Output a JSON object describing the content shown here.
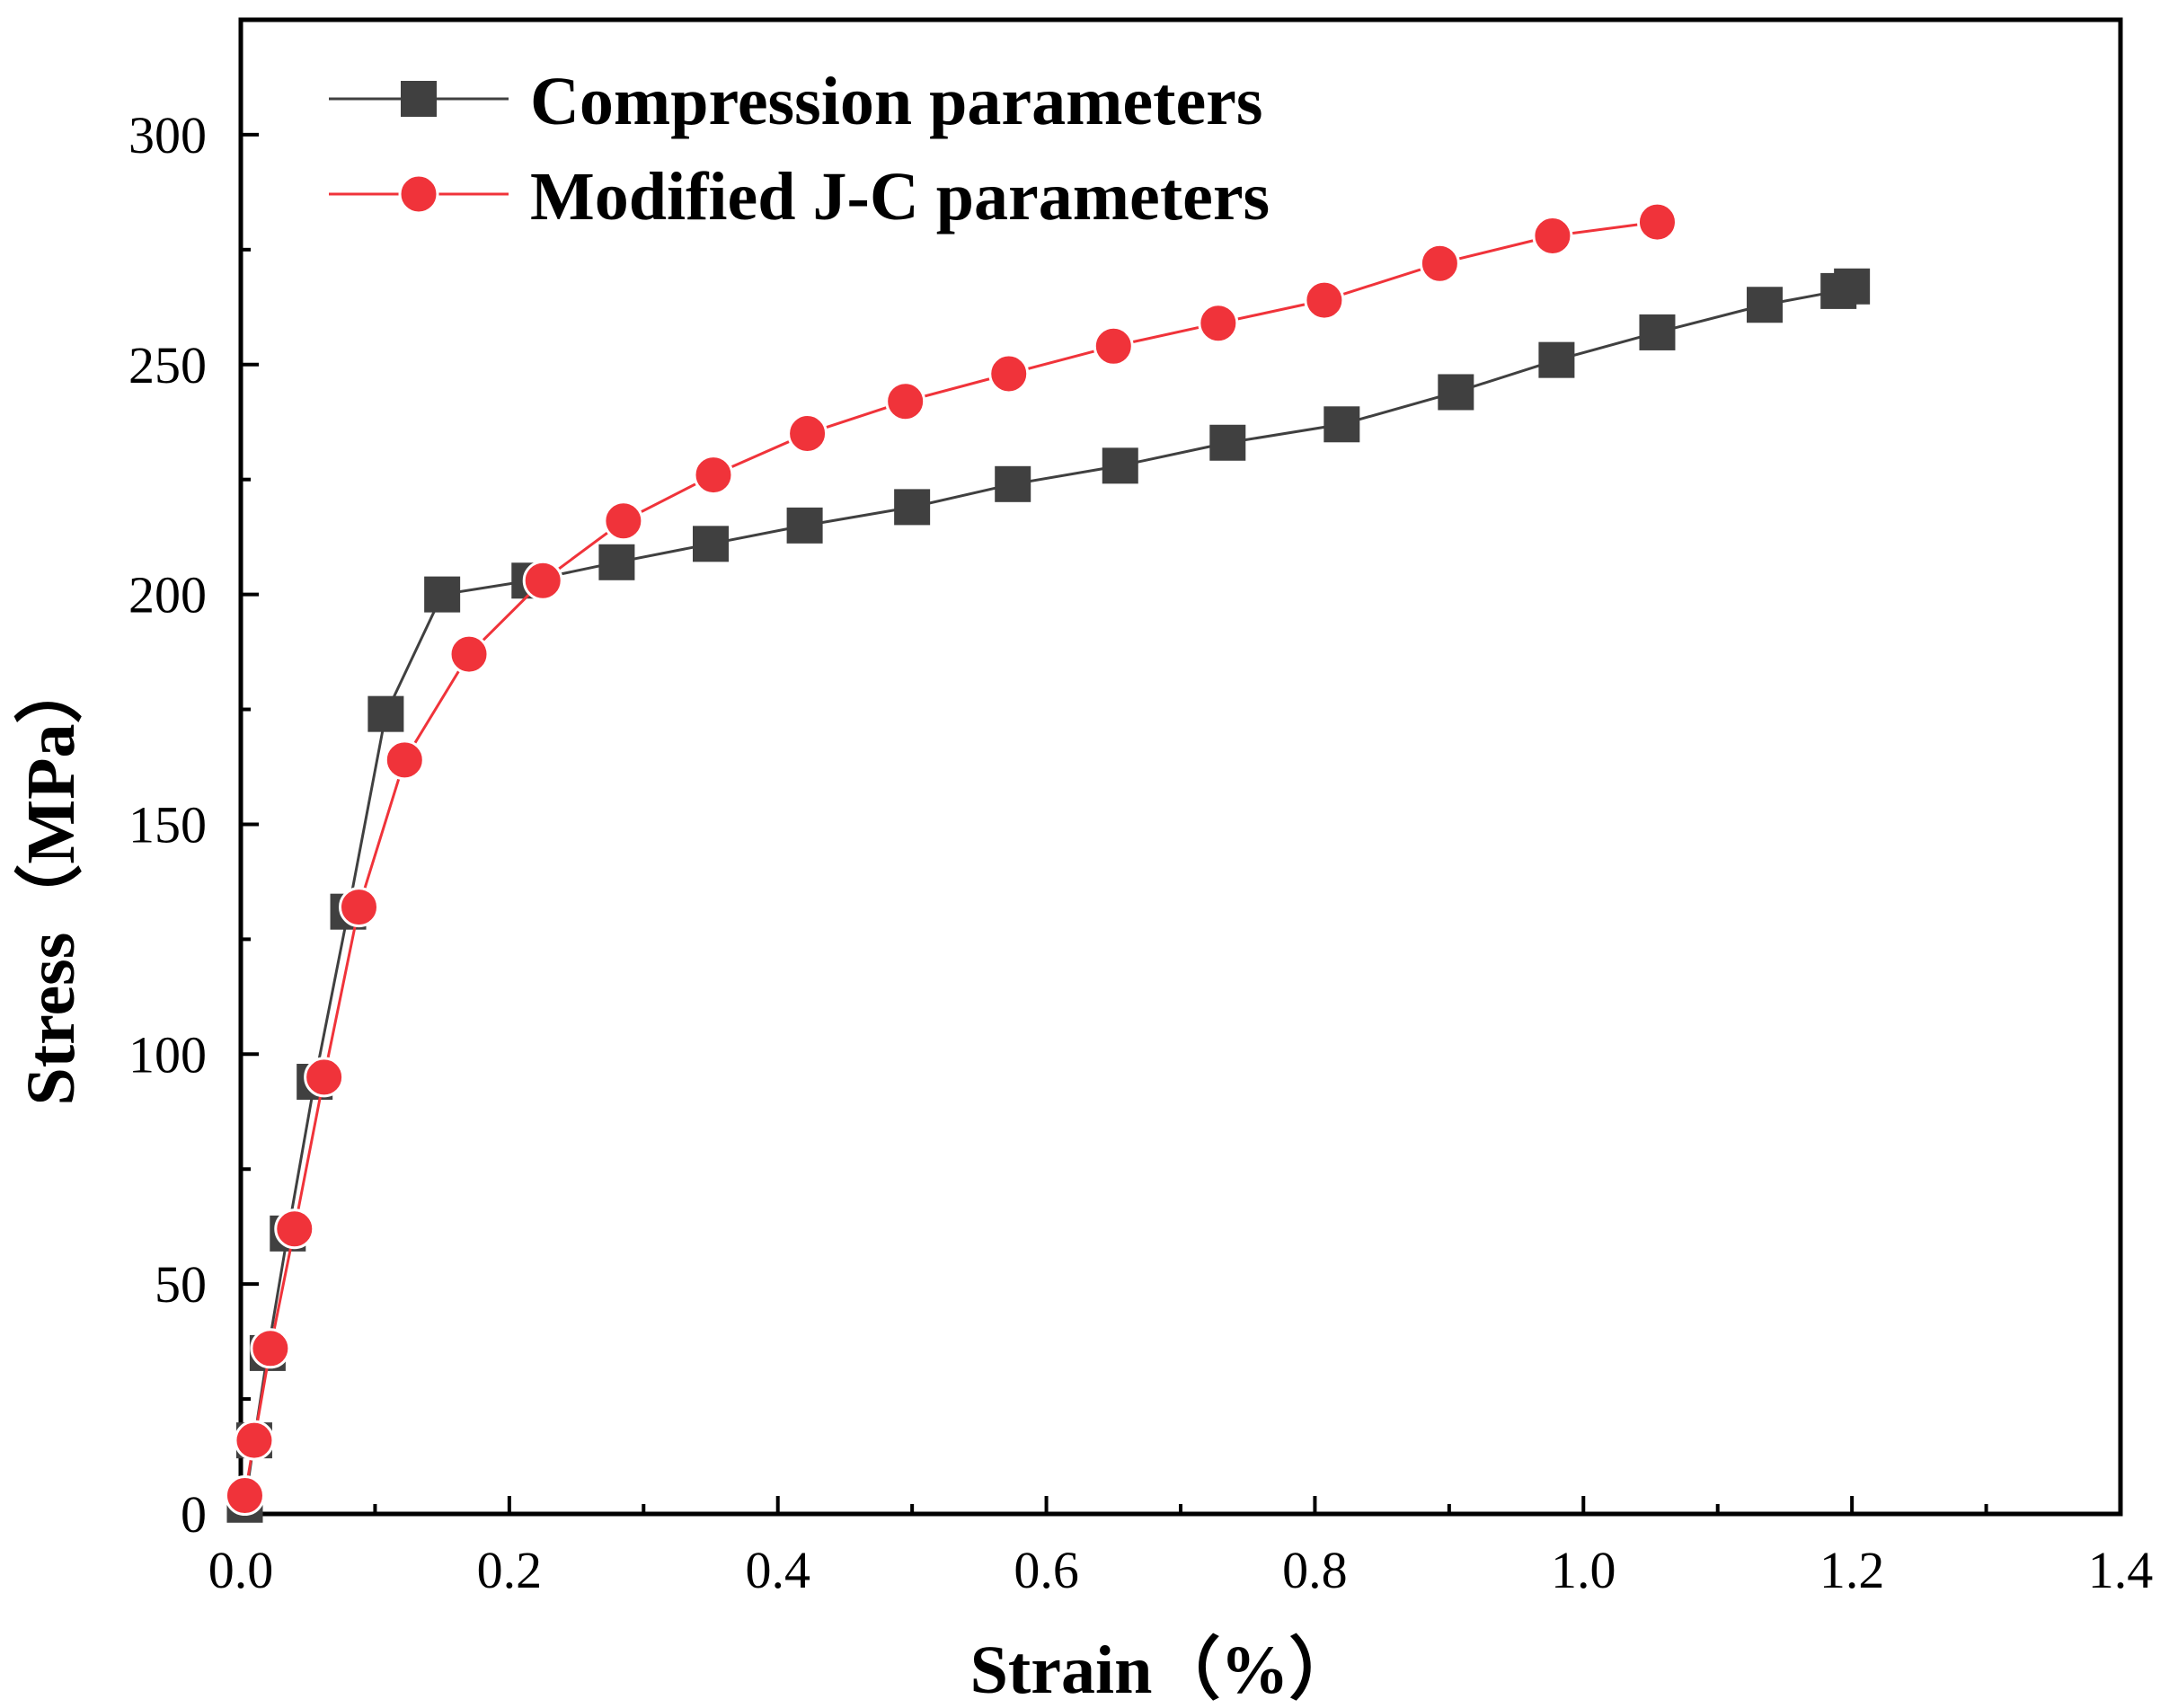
{
  "chart_data": {
    "type": "line",
    "title": "",
    "xlabel": "Strain（%）",
    "ylabel": "Stress（MPa）",
    "xlim": [
      0.0,
      1.4
    ],
    "ylim": [
      0,
      325
    ],
    "xticks": [
      0.0,
      0.2,
      0.4,
      0.6,
      0.8,
      1.0,
      1.2,
      1.4
    ],
    "xtick_labels": [
      "0.0",
      "0.2",
      "0.4",
      "0.6",
      "0.8",
      "1.0",
      "1.2",
      "1.4"
    ],
    "yticks": [
      0,
      50,
      100,
      150,
      200,
      250,
      300
    ],
    "ytick_labels": [
      "0",
      "50",
      "100",
      "150",
      "200",
      "250",
      "300"
    ],
    "grid": false,
    "legend_position": "top-left",
    "series": [
      {
        "name": "Compression parameters",
        "color": "#404040",
        "marker": "square",
        "x": [
          0.003,
          0.01,
          0.02,
          0.035,
          0.055,
          0.08,
          0.108,
          0.15,
          0.215,
          0.28,
          0.35,
          0.42,
          0.5,
          0.575,
          0.655,
          0.735,
          0.82,
          0.905,
          0.98,
          1.055,
          1.135,
          1.19,
          1.2
        ],
        "y": [
          2,
          16,
          35,
          61,
          94,
          131,
          174,
          200,
          203,
          207,
          211,
          215,
          219,
          224,
          228,
          233,
          237,
          244,
          251,
          257,
          263,
          266,
          267
        ]
      },
      {
        "name": "Modified J-C parameters",
        "color": "#f0333a",
        "marker": "circle",
        "x": [
          0.003,
          0.01,
          0.022,
          0.04,
          0.062,
          0.088,
          0.122,
          0.17,
          0.225,
          0.285,
          0.352,
          0.422,
          0.495,
          0.572,
          0.65,
          0.728,
          0.807,
          0.893,
          0.977,
          1.055
        ],
        "y": [
          4,
          16,
          36,
          62,
          95,
          132,
          164,
          187,
          203,
          216,
          226,
          235,
          242,
          248,
          254,
          259,
          264,
          272,
          278,
          281
        ]
      }
    ]
  }
}
